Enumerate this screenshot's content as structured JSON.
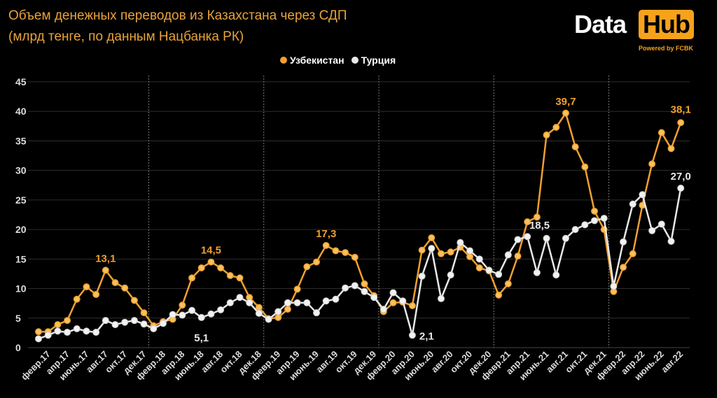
{
  "header": {
    "title_line1": "Объем денежных переводов из Казахстана через СДП",
    "title_line2": "(млрд тенге, по данным Нацбанка РК)"
  },
  "logo": {
    "data": "Data",
    "hub": "Hub",
    "powered": "Powered by FCBK"
  },
  "colors": {
    "uzbekistan": "#f0a030",
    "turkey": "#e8e8e8",
    "title": "#e9a23b",
    "grid": "#2e2e2e"
  },
  "chart_data": {
    "type": "line",
    "title": "Объем денежных переводов из Казахстана через СДП (млрд тенге, по данным Нацбанка РК)",
    "xlabel": "",
    "ylabel": "",
    "ylim": [
      0,
      45
    ],
    "yticks": [
      "0",
      "5",
      "10",
      "15",
      "20",
      "25",
      "30",
      "35",
      "40",
      "45"
    ],
    "grid": true,
    "legend_placement": "top-center",
    "x_tick_labels": [
      "февр.17",
      "апр.17",
      "июнь.17",
      "авг.17",
      "окт.17",
      "дек.17",
      "февр.18",
      "апр.18",
      "июнь.18",
      "авг.18",
      "окт.18",
      "дек.18",
      "февр.19",
      "апр.19",
      "июнь.19",
      "авг.19",
      "окт.19",
      "дек.19",
      "февр.20",
      "апр.20",
      "июнь.20",
      "авг.20",
      "окт.20",
      "дек.20",
      "февр.21",
      "апр.21",
      "июнь.21",
      "авг.21",
      "окт.21",
      "дек.21",
      "февр.22",
      "апр.22",
      "июнь.22",
      "авг.22"
    ],
    "x_start": "янв.17",
    "x_end": "авг.22",
    "series": [
      {
        "name": "Узбекистан",
        "color": "#f0a030",
        "values": [
          2.7,
          2.7,
          3.9,
          4.6,
          8.2,
          10.3,
          9.0,
          13.1,
          11.0,
          10.1,
          8.0,
          5.9,
          3.7,
          4.4,
          4.8,
          7.2,
          11.8,
          13.5,
          14.5,
          13.5,
          12.2,
          11.8,
          8.5,
          6.8,
          4.9,
          5.1,
          6.5,
          9.9,
          13.7,
          14.5,
          17.3,
          16.4,
          16.1,
          15.3,
          10.8,
          8.8,
          6.1,
          7.6,
          7.7,
          7.1,
          16.5,
          18.6,
          15.9,
          16.2,
          17.0,
          15.4,
          13.5,
          13.0,
          8.9,
          10.8,
          15.5,
          21.3,
          22.1,
          36.0,
          37.3,
          39.7,
          34.0,
          30.6,
          23.1,
          20.0,
          9.5,
          13.6,
          15.9,
          24.1,
          31.1,
          36.4,
          33.7,
          38.1
        ]
      },
      {
        "name": "Турция",
        "color": "#e8e8e8",
        "values": [
          1.5,
          2.1,
          2.8,
          2.6,
          3.2,
          2.8,
          2.6,
          4.6,
          3.9,
          4.3,
          4.6,
          4.0,
          3.2,
          4.1,
          5.6,
          5.5,
          6.3,
          5.1,
          5.7,
          6.4,
          7.6,
          8.5,
          7.6,
          5.8,
          4.8,
          6.1,
          7.6,
          7.6,
          7.6,
          5.9,
          7.9,
          8.2,
          10.1,
          10.5,
          9.5,
          8.5,
          6.5,
          9.3,
          7.9,
          2.1,
          12.1,
          16.8,
          8.3,
          12.3,
          17.8,
          16.4,
          15.0,
          13.1,
          12.4,
          15.7,
          18.3,
          18.8,
          12.7,
          18.5,
          12.3,
          18.5,
          20.0,
          20.8,
          21.5,
          21.9,
          10.4,
          17.9,
          24.3,
          25.9,
          19.8,
          20.9,
          18.0,
          27.0
        ]
      }
    ],
    "annotations": [
      {
        "series": 0,
        "index": 7,
        "text": "13,1"
      },
      {
        "series": 0,
        "index": 18,
        "text": "14,5"
      },
      {
        "series": 0,
        "index": 30,
        "text": "17,3"
      },
      {
        "series": 0,
        "index": 55,
        "text": "39,7"
      },
      {
        "series": 0,
        "index": 67,
        "text": "38,1"
      },
      {
        "series": 1,
        "index": 17,
        "text": "5,1"
      },
      {
        "series": 1,
        "index": 39,
        "text": "2,1"
      },
      {
        "series": 1,
        "index": 53,
        "text": "18,5"
      },
      {
        "series": 1,
        "index": 67,
        "text": "27,0"
      }
    ]
  }
}
